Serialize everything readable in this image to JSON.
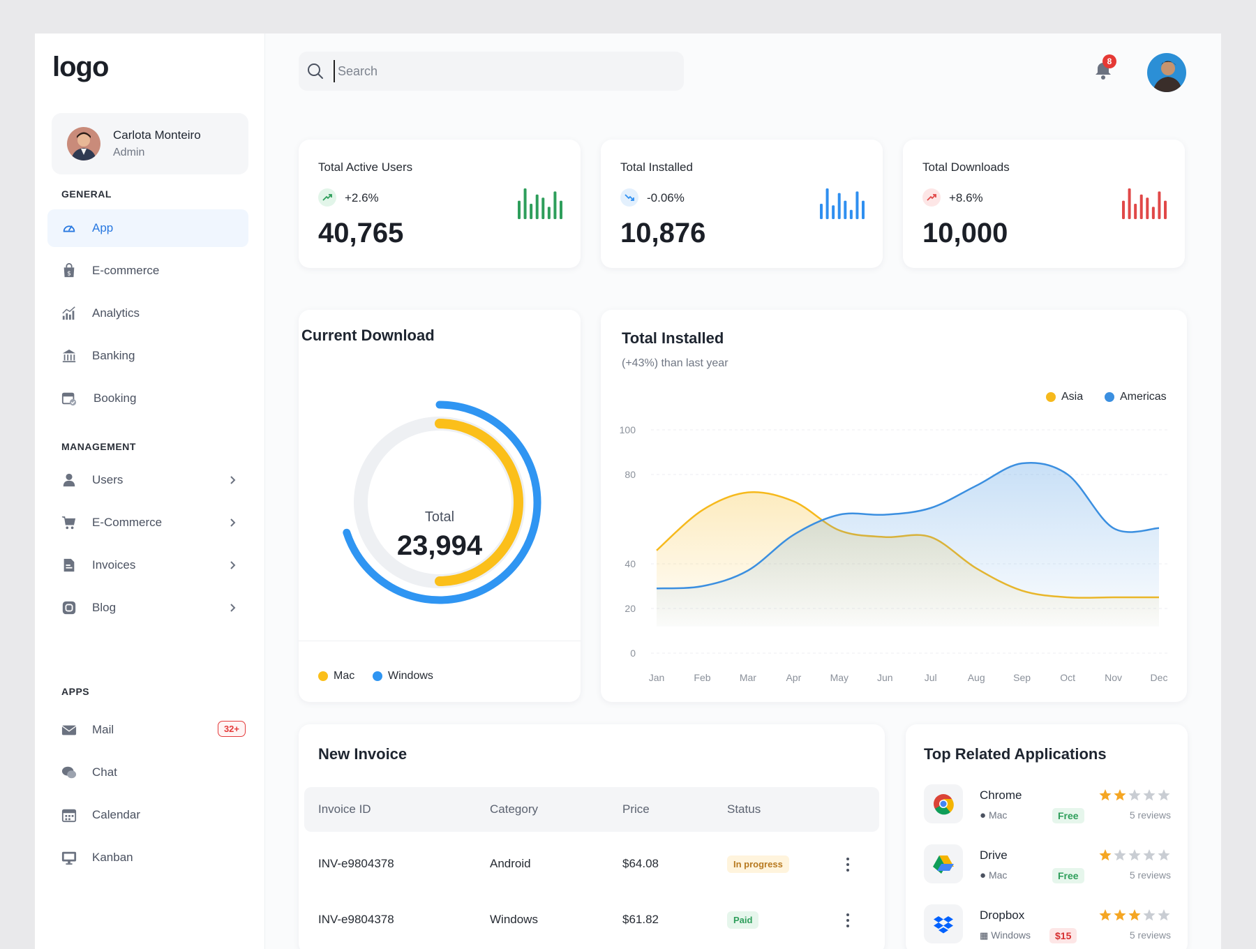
{
  "logo": "logo",
  "user": {
    "name": "Carlota Monteiro",
    "role": "Admin"
  },
  "sidebar": {
    "general_title": "GENERAL",
    "general": [
      {
        "label": "App",
        "icon": "dashboard-icon",
        "active": true
      },
      {
        "label": "E-commerce",
        "icon": "shopping-bag-icon"
      },
      {
        "label": "Analytics",
        "icon": "analytics-icon"
      },
      {
        "label": "Banking",
        "icon": "bank-icon"
      },
      {
        "label": "Booking",
        "icon": "calendar-check-icon"
      }
    ],
    "management_title": "MANAGEMENT",
    "management": [
      {
        "label": "Users",
        "icon": "user-icon"
      },
      {
        "label": "E-Commerce",
        "icon": "cart-icon"
      },
      {
        "label": "Invoices",
        "icon": "invoice-icon"
      },
      {
        "label": "Blog",
        "icon": "blog-icon"
      }
    ],
    "apps_title": "APPS",
    "apps": [
      {
        "label": "Mail",
        "icon": "mail-icon",
        "badge": "32+"
      },
      {
        "label": "Chat",
        "icon": "chat-icon"
      },
      {
        "label": "Calendar",
        "icon": "calendar-icon"
      },
      {
        "label": "Kanban",
        "icon": "kanban-icon"
      }
    ]
  },
  "header": {
    "search_placeholder": "Search",
    "notifications": "8"
  },
  "stats": [
    {
      "title": "Total Active Users",
      "change": "+2.6%",
      "value": "40,765",
      "direction": "up",
      "color": "#2e9e5b",
      "bars": [
        0.6,
        1.0,
        0.5,
        0.8,
        0.7,
        0.4,
        0.9,
        0.6
      ]
    },
    {
      "title": "Total Installed",
      "change": "-0.06%",
      "value": "10,876",
      "direction": "down",
      "color": "#2f8ff0",
      "bars": [
        0.5,
        1.0,
        0.45,
        0.85,
        0.6,
        0.3,
        0.9,
        0.6
      ]
    },
    {
      "title": "Total Downloads",
      "change": "+8.6%",
      "value": "10,000",
      "direction": "up",
      "color": "#e04848",
      "bars": [
        0.6,
        1.0,
        0.5,
        0.8,
        0.7,
        0.4,
        0.9,
        0.6
      ]
    }
  ],
  "current_download": {
    "title": "Current Download",
    "total_label": "Total",
    "total_value": "23,994",
    "legend": [
      {
        "label": "Mac",
        "color": "#fbbf1a"
      },
      {
        "label": "Windows",
        "color": "#2f95f2"
      }
    ],
    "segments": {
      "windows": 0.7,
      "mac": 0.5
    }
  },
  "chart_data": {
    "type": "area",
    "title": "Total Installed",
    "subtitle": "(+43%) than last year",
    "categories": [
      "Jan",
      "Feb",
      "Mar",
      "Apr",
      "May",
      "Jun",
      "Jul",
      "Aug",
      "Sep",
      "Oct",
      "Nov",
      "Dec"
    ],
    "series": [
      {
        "name": "Asia",
        "color": "#f6b91c",
        "values": [
          46,
          64,
          72,
          68,
          55,
          52,
          52,
          38,
          28,
          25,
          25,
          25
        ]
      },
      {
        "name": "Americas",
        "color": "#3b8fe0",
        "values": [
          29,
          30,
          37,
          53,
          62,
          62,
          65,
          75,
          85,
          80,
          56,
          56
        ]
      }
    ],
    "ylim": [
      0,
      100
    ],
    "yticks": [
      0,
      20,
      40,
      80,
      100
    ],
    "legend_position": "top-right",
    "grid": true
  },
  "invoice": {
    "title": "New Invoice",
    "columns": [
      "Invoice ID",
      "Category",
      "Price",
      "Status"
    ],
    "rows": [
      {
        "id": "INV-e9804378",
        "category": "Android",
        "price": "$64.08",
        "status": "In progress",
        "status_color": "#b7791f",
        "status_bg": "#fff4dd"
      },
      {
        "id": "INV-e9804378",
        "category": "Windows",
        "price": "$61.82",
        "status": "Paid",
        "status_color": "#2e9e5b",
        "status_bg": "#e6f6ec"
      }
    ]
  },
  "related_apps": {
    "title": "Top Related Applications",
    "items": [
      {
        "name": "Chrome",
        "icon": "chrome-icon",
        "os": "Mac",
        "os_icon": "apple-icon",
        "price": "Free",
        "rating": 2,
        "reviews": "5 reviews"
      },
      {
        "name": "Drive",
        "icon": "google-drive-icon",
        "os": "Mac",
        "os_icon": "apple-icon",
        "price": "Free",
        "rating": 1,
        "reviews": "5 reviews"
      },
      {
        "name": "Dropbox",
        "icon": "dropbox-icon",
        "os": "Windows",
        "os_icon": "windows-icon",
        "price": "$15",
        "rating": 3,
        "reviews": "5 reviews"
      }
    ]
  }
}
